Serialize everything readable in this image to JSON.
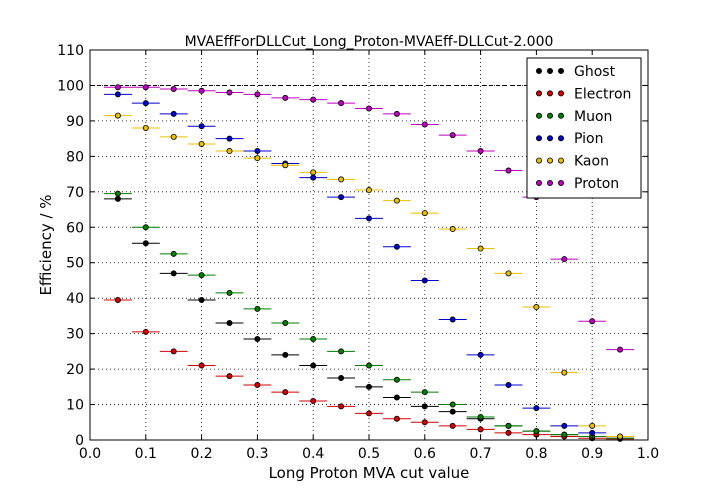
{
  "chart_data": {
    "type": "scatter",
    "title": "MVAEffForDLLCut_Long_Proton-MVAEff-DLLCut-2.000",
    "xlabel": "Long Proton MVA cut value",
    "ylabel": "Efficiency / %",
    "xlim": [
      0.0,
      1.0
    ],
    "ylim": [
      0,
      110
    ],
    "xticks": [
      "0.0",
      "0.1",
      "0.2",
      "0.3",
      "0.4",
      "0.5",
      "0.6",
      "0.7",
      "0.8",
      "0.9",
      "1.0"
    ],
    "yticks": [
      "0",
      "10",
      "20",
      "30",
      "40",
      "50",
      "60",
      "70",
      "80",
      "90",
      "100",
      "110"
    ],
    "grid": true,
    "reference_line_y": 100,
    "legend_position": "top-right",
    "bin_width": 0.05,
    "x": [
      0.05,
      0.1,
      0.15,
      0.2,
      0.25,
      0.3,
      0.35,
      0.4,
      0.45,
      0.5,
      0.55,
      0.6,
      0.65,
      0.7,
      0.75,
      0.8,
      0.85,
      0.9,
      0.95
    ],
    "series": [
      {
        "name": "Ghost",
        "color": "#000000",
        "values": [
          68,
          55.5,
          47,
          39.5,
          33,
          28.5,
          24,
          21,
          17.5,
          15,
          12,
          9.5,
          8,
          6,
          4,
          2.5,
          1.5,
          1,
          0.5
        ]
      },
      {
        "name": "Electron",
        "color": "#d40000",
        "values": [
          39.5,
          30.5,
          25,
          21,
          18,
          15.5,
          13.5,
          11,
          9.5,
          7.5,
          6,
          5,
          4,
          3,
          2,
          1.5,
          1,
          0.5,
          0.3
        ]
      },
      {
        "name": "Muon",
        "color": "#007f00",
        "values": [
          69.5,
          60,
          52.5,
          46.5,
          41.5,
          37,
          33,
          28.5,
          25,
          21,
          17,
          13.5,
          10,
          6.5,
          4,
          2.5,
          1.5,
          1,
          0.5
        ]
      },
      {
        "name": "Pion",
        "color": "#0000cc",
        "values": [
          97.5,
          95,
          92,
          88.5,
          85,
          81.5,
          78,
          74,
          68.5,
          62.5,
          54.5,
          45,
          34,
          24,
          15.5,
          9,
          4,
          2,
          1
        ]
      },
      {
        "name": "Kaon",
        "color": "#e8c000",
        "values": [
          91.5,
          88,
          85.5,
          83.5,
          81.5,
          79.5,
          77.5,
          75.5,
          73.5,
          70.5,
          67.5,
          64,
          59.5,
          54,
          47,
          37.5,
          19,
          4,
          1
        ]
      },
      {
        "name": "Proton",
        "color": "#bf00bf",
        "values": [
          99.5,
          99.5,
          99,
          98.5,
          98,
          97.5,
          96.5,
          96,
          95,
          93.5,
          92,
          89,
          86,
          81.5,
          76,
          68.5,
          51,
          33.5,
          25.5
        ]
      }
    ]
  }
}
